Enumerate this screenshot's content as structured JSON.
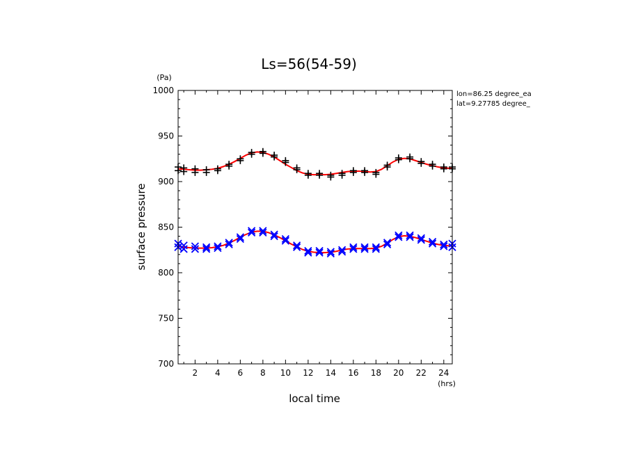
{
  "chart_data": {
    "type": "scatter",
    "title": "Ls=56(54-59)",
    "xlabel": "local time",
    "ylabel": "surface pressure",
    "x_unit": "(hrs)",
    "y_unit": "(Pa)",
    "xlim": [
      0.5,
      24.75
    ],
    "ylim": [
      700,
      1000
    ],
    "x_ticks": [
      2,
      4,
      6,
      8,
      10,
      12,
      14,
      16,
      18,
      20,
      22,
      24
    ],
    "y_ticks": [
      700,
      750,
      800,
      850,
      900,
      950,
      1000
    ],
    "annotations": [
      "lon=86.25 degree_ea",
      "lat=9.27785 degree_"
    ],
    "grid": false,
    "colors": {
      "obs_upper": "#000000",
      "obs_lower": "#0000ff",
      "fit": "#ff0000"
    },
    "series": [
      {
        "marker": "plus",
        "color": "#000000",
        "x": [
          0.5,
          0.5,
          1,
          1,
          2,
          2,
          3,
          3,
          4,
          4,
          5,
          5,
          6,
          6,
          7,
          7,
          8,
          8,
          9,
          9,
          10,
          10,
          11,
          11,
          12,
          12,
          13,
          13,
          14,
          14,
          15,
          15,
          16,
          16,
          17,
          17,
          18,
          18,
          19,
          19,
          20,
          20,
          21,
          21,
          22,
          22,
          23,
          23,
          24,
          24,
          24.75,
          24.75
        ],
        "y": [
          916,
          912,
          915,
          911,
          914,
          910,
          913,
          910,
          914,
          912,
          919,
          917,
          925,
          923,
          932,
          930,
          933,
          931,
          929,
          927,
          923,
          921,
          915,
          913,
          909,
          907,
          909,
          907,
          907,
          905,
          909,
          907,
          912,
          910,
          912,
          910,
          910,
          908,
          918,
          916,
          926,
          924,
          927,
          925,
          922,
          920,
          919,
          917,
          916,
          914,
          916,
          914
        ]
      },
      {
        "marker": "x",
        "color": "#0000ff",
        "x": [
          0.5,
          0.5,
          1,
          1,
          2,
          2,
          3,
          3,
          4,
          4,
          5,
          5,
          6,
          6,
          7,
          7,
          8,
          8,
          9,
          9,
          10,
          10,
          11,
          11,
          12,
          12,
          13,
          13,
          14,
          14,
          15,
          15,
          16,
          16,
          17,
          17,
          18,
          18,
          19,
          19,
          20,
          20,
          21,
          21,
          22,
          22,
          23,
          23,
          24,
          24,
          24.75,
          24.75
        ],
        "y": [
          832,
          828,
          830,
          826,
          829,
          826,
          828,
          826,
          829,
          827,
          833,
          831,
          839,
          837,
          846,
          844,
          846,
          844,
          842,
          840,
          837,
          835,
          830,
          828,
          824,
          822,
          824,
          822,
          823,
          821,
          825,
          823,
          828,
          826,
          828,
          826,
          828,
          826,
          833,
          831,
          841,
          839,
          841,
          839,
          838,
          836,
          834,
          832,
          831,
          829,
          832,
          828
        ]
      },
      {
        "type": "line",
        "color": "#ff0000",
        "x": [
          0.5,
          1,
          1.5,
          2,
          2.5,
          3,
          3.5,
          4,
          4.5,
          5,
          5.5,
          6,
          6.5,
          7,
          7.5,
          8,
          8.5,
          9,
          9.5,
          10,
          10.5,
          11,
          11.5,
          12,
          12.5,
          13,
          13.5,
          14,
          14.5,
          15,
          15.5,
          16,
          16.5,
          17,
          17.5,
          18,
          18.5,
          19,
          19.5,
          20,
          20.5,
          21,
          21.5,
          22,
          22.5,
          23,
          23.5,
          24,
          24.5,
          24.75
        ],
        "y": [
          914,
          913.5,
          913,
          912.5,
          912.5,
          913,
          913.5,
          914.5,
          916.5,
          919,
          922,
          925.5,
          929,
          931.5,
          932.5,
          932,
          930,
          927,
          923,
          919,
          915.5,
          912,
          909.5,
          908,
          907.5,
          907.5,
          907.5,
          908,
          909,
          910,
          911,
          911.5,
          911.5,
          911,
          910.5,
          911,
          913.5,
          917.5,
          921.5,
          924.5,
          925.5,
          925,
          923,
          921,
          919,
          917.5,
          916,
          915,
          914.5,
          914.5
        ]
      },
      {
        "type": "line",
        "color": "#ff0000",
        "x": [
          0.5,
          1,
          1.5,
          2,
          2.5,
          3,
          3.5,
          4,
          4.5,
          5,
          5.5,
          6,
          6.5,
          7,
          7.5,
          8,
          8.5,
          9,
          9.5,
          10,
          10.5,
          11,
          11.5,
          12,
          12.5,
          13,
          13.5,
          14,
          14.5,
          15,
          15.5,
          16,
          16.5,
          17,
          17.5,
          18,
          18.5,
          19,
          19.5,
          20,
          20.5,
          21,
          21.5,
          22,
          22.5,
          23,
          23.5,
          24,
          24.5,
          24.75
        ],
        "y": [
          829,
          828,
          827.5,
          827,
          827,
          827,
          827.5,
          828.5,
          830,
          832.5,
          835.5,
          839,
          842,
          844.5,
          845.5,
          845.5,
          844,
          841.5,
          838.5,
          835,
          831.5,
          828.5,
          825.5,
          823.5,
          822.5,
          822,
          822,
          822.5,
          823.5,
          825,
          826,
          826.5,
          826.5,
          826.5,
          826.5,
          827,
          829,
          832.5,
          836.5,
          839.5,
          840.5,
          840,
          838.5,
          836.5,
          834.5,
          832.5,
          831,
          830,
          829.5,
          829
        ]
      }
    ]
  }
}
